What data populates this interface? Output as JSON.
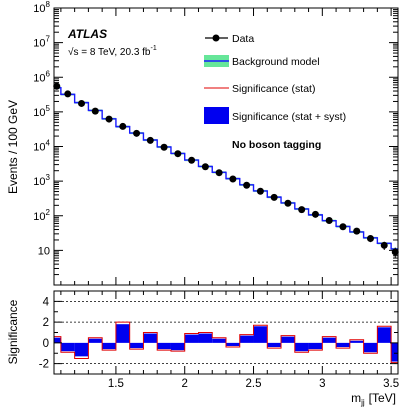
{
  "experiment": "ATLAS",
  "energy_prefix": "√s = 8 TeV, 20.3 fb",
  "energy_sup": "-1",
  "category": "No boson tagging",
  "colors": {
    "data": "#000000",
    "background_line": "#1a1aff",
    "background_band": "#66e699",
    "sig_stat": "#e00000",
    "sig_syst": "#0000f0"
  },
  "chart_data": [
    {
      "type": "line",
      "subtype": "histogram",
      "xlabel": "m",
      "xlabel_sub": "jj",
      "xlabel_unit": "[TeV]",
      "ylabel": "Events / 100 GeV",
      "yscale": "log",
      "xlim": [
        1.05,
        3.55
      ],
      "ylim": [
        1,
        100000000
      ],
      "legend_position": "top-right",
      "yticks": [
        {
          "value": 10,
          "base": "10",
          "exp": ""
        },
        {
          "value": 100,
          "base": "10",
          "exp": "2"
        },
        {
          "value": 1000,
          "base": "10",
          "exp": "3"
        },
        {
          "value": 10000,
          "base": "10",
          "exp": "4"
        },
        {
          "value": 100000,
          "base": "10",
          "exp": "5"
        },
        {
          "value": 1000000,
          "base": "10",
          "exp": "6"
        },
        {
          "value": 10000000,
          "base": "10",
          "exp": "7"
        },
        {
          "value": 100000000,
          "base": "10",
          "exp": "8"
        }
      ],
      "bin_edges": [
        1.05,
        1.1,
        1.2,
        1.3,
        1.4,
        1.5,
        1.6,
        1.7,
        1.8,
        1.9,
        2.0,
        2.1,
        2.2,
        2.3,
        2.4,
        2.5,
        2.6,
        2.7,
        2.8,
        2.9,
        3.0,
        3.1,
        3.2,
        3.3,
        3.4,
        3.5,
        3.55
      ],
      "series": [
        {
          "name": "Data",
          "x": [
            1.07,
            1.15,
            1.25,
            1.35,
            1.45,
            1.55,
            1.65,
            1.75,
            1.85,
            1.95,
            2.05,
            2.15,
            2.25,
            2.35,
            2.45,
            2.55,
            2.65,
            2.75,
            2.85,
            2.95,
            3.05,
            3.15,
            3.25,
            3.35,
            3.45,
            3.53
          ],
          "values": [
            550000,
            330000,
            175000,
            105000,
            62000,
            38000,
            24000,
            15000,
            9500,
            6200,
            4000,
            2600,
            1750,
            1150,
            760,
            510,
            340,
            230,
            150,
            110,
            73,
            48,
            36,
            22,
            14,
            9
          ]
        },
        {
          "name": "Background model",
          "values": [
            500000,
            320000,
            185000,
            110000,
            63000,
            37500,
            24500,
            15400,
            9700,
            6300,
            4050,
            2650,
            1800,
            1180,
            780,
            520,
            345,
            235,
            157,
            106,
            72,
            49,
            34,
            23,
            16,
            11
          ]
        }
      ],
      "legend": [
        {
          "label": "Data",
          "style": "marker"
        },
        {
          "label": "Background model",
          "style": "band"
        },
        {
          "label": "Significance (stat)",
          "style": "line"
        },
        {
          "label": "Significance (stat + syst)",
          "style": "box"
        }
      ]
    },
    {
      "type": "bar",
      "ylabel": "Significance",
      "xlim": [
        1.05,
        3.55
      ],
      "ylim": [
        -3,
        5
      ],
      "xticks": [
        "1.5",
        "2",
        "2.5",
        "3",
        "3.5"
      ],
      "xtick_values": [
        1.5,
        2.0,
        2.5,
        3.0,
        3.5
      ],
      "yticks": [
        "4",
        "2",
        "0",
        "-2"
      ],
      "ytick_values": [
        4,
        2,
        0,
        -2
      ],
      "reference_lines": [
        4,
        2,
        -2
      ],
      "series": [
        {
          "name": "Significance (stat + syst)",
          "values": [
            0.5,
            -0.8,
            -1.3,
            0.4,
            -0.6,
            1.8,
            -0.5,
            0.9,
            -0.6,
            -0.7,
            0.8,
            0.9,
            0.4,
            -0.3,
            0.7,
            1.6,
            -0.4,
            0.6,
            -0.8,
            -0.6,
            0.5,
            -0.4,
            0.2,
            -0.9,
            1.5,
            -1.8
          ]
        },
        {
          "name": "Significance (stat)",
          "values": [
            0.6,
            -0.9,
            -1.5,
            0.5,
            -0.7,
            2.0,
            -0.6,
            1.0,
            -0.7,
            -0.8,
            0.9,
            1.0,
            0.5,
            -0.4,
            0.8,
            1.7,
            -0.5,
            0.7,
            -0.9,
            -0.7,
            0.6,
            -0.5,
            0.3,
            -1.0,
            1.6,
            -1.9
          ]
        }
      ]
    }
  ]
}
